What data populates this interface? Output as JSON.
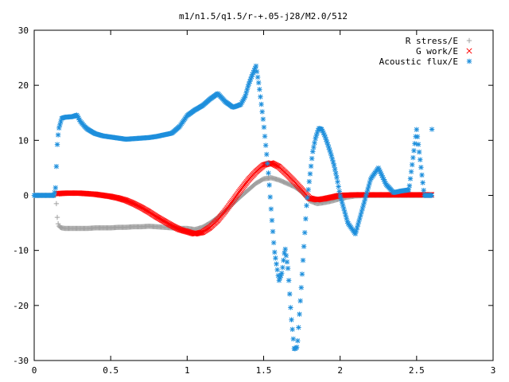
{
  "chart_data": {
    "type": "scatter",
    "title": "m1/n1.5/q1.5/r-+.05-j28/M2.0/512",
    "xlabel": "",
    "ylabel": "",
    "xlim": [
      0,
      3
    ],
    "ylim": [
      -30,
      30
    ],
    "x_ticks": [
      0,
      0.5,
      1,
      1.5,
      2,
      2.5,
      3
    ],
    "x_tick_labels": [
      "0",
      "0.5",
      "1",
      "1.5",
      "2",
      "2.5",
      "3"
    ],
    "y_ticks": [
      -30,
      -20,
      -10,
      0,
      10,
      20,
      30
    ],
    "y_tick_labels": [
      "-30",
      "-20",
      "-10",
      "0",
      "10",
      "20",
      "30"
    ],
    "grid": false,
    "legend_position": "top-right",
    "series": [
      {
        "name": "R stress/E",
        "marker": "plus",
        "color": "#a0a0a0",
        "x": [
          0,
          0.05,
          0.1,
          0.14,
          0.145,
          0.15,
          0.155,
          0.16,
          0.17,
          0.18,
          0.2,
          0.25,
          0.3,
          0.35,
          0.4,
          0.45,
          0.5,
          0.55,
          0.6,
          0.65,
          0.7,
          0.75,
          0.8,
          0.85,
          0.9,
          0.95,
          1.0,
          1.05,
          1.1,
          1.15,
          1.2,
          1.25,
          1.3,
          1.35,
          1.4,
          1.45,
          1.5,
          1.55,
          1.6,
          1.65,
          1.7,
          1.75,
          1.8,
          1.85,
          1.9,
          1.95,
          2.0,
          2.05,
          2.1,
          2.2,
          2.3,
          2.4,
          2.5,
          2.6
        ],
        "y": [
          0,
          0,
          0,
          0,
          -1.5,
          -3.8,
          -5.0,
          -5.5,
          -5.8,
          -5.9,
          -6.0,
          -6.0,
          -6.0,
          -6.0,
          -5.9,
          -5.9,
          -5.9,
          -5.8,
          -5.8,
          -5.7,
          -5.7,
          -5.6,
          -5.7,
          -5.8,
          -5.9,
          -6.0,
          -6.0,
          -6.2,
          -5.8,
          -5.0,
          -4.0,
          -2.8,
          -1.5,
          -0.2,
          1.0,
          2.2,
          3.0,
          3.2,
          2.8,
          2.2,
          1.6,
          0.6,
          -1.0,
          -1.5,
          -1.3,
          -1.0,
          -0.6,
          -0.3,
          -0.1,
          0,
          0,
          0,
          0,
          0
        ]
      },
      {
        "name": "G work/E",
        "marker": "cross",
        "color": "#ff0000",
        "x": [
          0.15,
          0.2,
          0.25,
          0.3,
          0.35,
          0.4,
          0.45,
          0.5,
          0.55,
          0.6,
          0.65,
          0.7,
          0.75,
          0.8,
          0.85,
          0.9,
          0.95,
          1.0,
          1.05,
          1.1,
          1.15,
          1.2,
          1.25,
          1.3,
          1.35,
          1.4,
          1.45,
          1.5,
          1.55,
          1.6,
          1.65,
          1.7,
          1.75,
          1.8,
          1.85,
          1.9,
          1.95,
          2.0,
          2.1,
          2.2,
          2.3,
          2.4,
          2.5,
          2.6
        ],
        "y": [
          0.3,
          0.4,
          0.4,
          0.4,
          0.3,
          0.2,
          0,
          -0.2,
          -0.5,
          -0.9,
          -1.5,
          -2.2,
          -3.0,
          -3.9,
          -4.7,
          -5.5,
          -6.2,
          -6.6,
          -7.0,
          -6.7,
          -5.8,
          -4.5,
          -2.8,
          -0.9,
          1.0,
          2.8,
          4.3,
          5.5,
          5.9,
          5.2,
          3.9,
          2.5,
          1.0,
          -0.5,
          -0.8,
          -0.6,
          -0.3,
          0,
          0.1,
          0.1,
          0.1,
          0.1,
          0.1,
          0.1
        ]
      },
      {
        "name": "Acoustic flux/E",
        "marker": "star",
        "color": "#1e8fdc",
        "x": [
          0,
          0.05,
          0.1,
          0.13,
          0.14,
          0.15,
          0.16,
          0.18,
          0.2,
          0.25,
          0.28,
          0.3,
          0.33,
          0.35,
          0.38,
          0.4,
          0.45,
          0.5,
          0.55,
          0.6,
          0.65,
          0.7,
          0.75,
          0.8,
          0.85,
          0.9,
          0.95,
          1.0,
          1.05,
          1.1,
          1.15,
          1.2,
          1.25,
          1.3,
          1.35,
          1.38,
          1.4,
          1.42,
          1.45,
          1.47,
          1.5,
          1.53,
          1.55,
          1.57,
          1.6,
          1.62,
          1.64,
          1.66,
          1.68,
          1.7,
          1.72,
          1.75,
          1.78,
          1.8,
          1.82,
          1.84,
          1.86,
          1.88,
          1.9,
          1.92,
          1.94,
          1.96,
          1.98,
          2.0,
          2.05,
          2.1,
          2.15,
          2.2,
          2.25,
          2.3,
          2.35,
          2.4,
          2.45,
          2.5,
          2.55,
          2.6
        ],
        "y": [
          0,
          0,
          0,
          0,
          1.5,
          9,
          12,
          14,
          14.2,
          14.3,
          14.6,
          13.5,
          12.5,
          12,
          11.5,
          11.2,
          10.8,
          10.6,
          10.4,
          10.2,
          10.3,
          10.4,
          10.5,
          10.7,
          11,
          11.3,
          12.5,
          14.5,
          15.5,
          16.3,
          17.5,
          18.5,
          17,
          16,
          16.5,
          18,
          20,
          21.5,
          23.5,
          20,
          13,
          4.5,
          -3,
          -10,
          -15.5,
          -14,
          -9.5,
          -13.5,
          -22,
          -28,
          -27.5,
          -15,
          -2,
          3,
          7.8,
          10.5,
          12.2,
          12,
          10.8,
          9.2,
          7.5,
          5.5,
          3,
          0,
          -5,
          -7,
          -2,
          3,
          5,
          2,
          0.5,
          0.8,
          1,
          12,
          0,
          0
        ],
        "outliers": [
          [
            2.6,
            12
          ]
        ]
      }
    ]
  }
}
